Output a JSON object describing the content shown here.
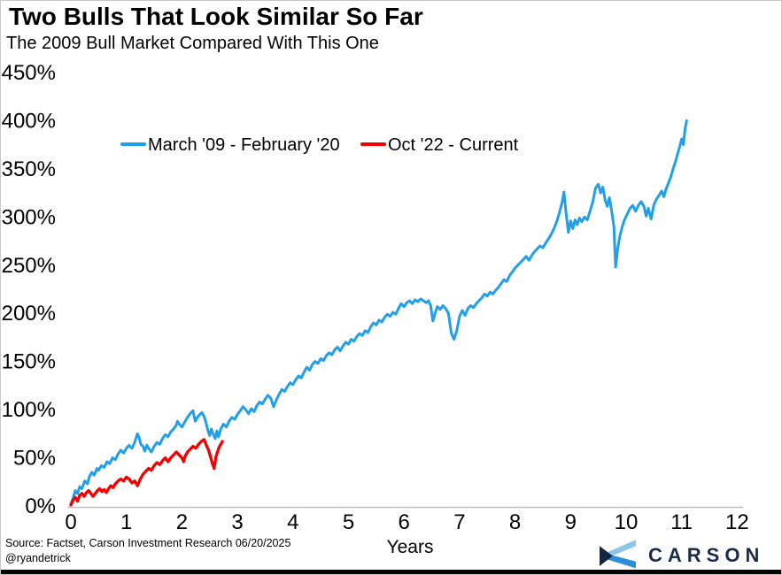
{
  "header": {
    "title": "Two Bulls That Look Similar So Far",
    "subtitle": "The 2009 Bull Market Compared With This One"
  },
  "footer": {
    "source_line1": "Source: Factset, Carson Investment Research 06/20/2025",
    "source_line2": "@ryandetrick",
    "logo_text": "CARSON"
  },
  "colors": {
    "series_blue": "#219fe8",
    "series_red": "#f30000",
    "axis_line": "#bfbfbf",
    "text": "#000000",
    "logo_navy": "#1b2b4a",
    "logo_dark_triangle": "#152540",
    "logo_light_band": "#89c6ea",
    "logo_mid_band": "#2b8fd8"
  },
  "chart_data": {
    "type": "line",
    "title": "Two Bulls That Look Similar So Far",
    "subtitle": "The 2009 Bull Market Compared With This One",
    "xlabel": "Years",
    "ylabel": "",
    "xlim": [
      0,
      12
    ],
    "ylim": [
      0,
      450
    ],
    "grid": false,
    "legend_position": "top-left-inside",
    "x_ticks": [
      0,
      1,
      2,
      3,
      4,
      5,
      6,
      7,
      8,
      9,
      10,
      11,
      12
    ],
    "y_ticks": [
      {
        "value": 0,
        "label": "0%"
      },
      {
        "value": 50,
        "label": "50%"
      },
      {
        "value": 100,
        "label": "100%"
      },
      {
        "value": 150,
        "label": "150%"
      },
      {
        "value": 200,
        "label": "200%"
      },
      {
        "value": 250,
        "label": "250%"
      },
      {
        "value": 300,
        "label": "300%"
      },
      {
        "value": 350,
        "label": "350%"
      },
      {
        "value": 400,
        "label": "400%"
      },
      {
        "value": 450,
        "label": "450%"
      }
    ],
    "series": [
      {
        "name": "March '09 - February '20",
        "color": "#219fe8",
        "points": [
          [
            0,
            2
          ],
          [
            0.04,
            8
          ],
          [
            0.08,
            16
          ],
          [
            0.12,
            13
          ],
          [
            0.16,
            20
          ],
          [
            0.2,
            18
          ],
          [
            0.25,
            26
          ],
          [
            0.3,
            23
          ],
          [
            0.33,
            30
          ],
          [
            0.38,
            35
          ],
          [
            0.42,
            32
          ],
          [
            0.47,
            39
          ],
          [
            0.5,
            37
          ],
          [
            0.55,
            42
          ],
          [
            0.6,
            40
          ],
          [
            0.65,
            46
          ],
          [
            0.7,
            44
          ],
          [
            0.75,
            50
          ],
          [
            0.8,
            48
          ],
          [
            0.85,
            54
          ],
          [
            0.9,
            58
          ],
          [
            0.95,
            55
          ],
          [
            1.0,
            60
          ],
          [
            1.05,
            63
          ],
          [
            1.1,
            60
          ],
          [
            1.15,
            66
          ],
          [
            1.2,
            75
          ],
          [
            1.23,
            71
          ],
          [
            1.26,
            64
          ],
          [
            1.3,
            62
          ],
          [
            1.33,
            57
          ],
          [
            1.37,
            63
          ],
          [
            1.4,
            60
          ],
          [
            1.45,
            56
          ],
          [
            1.5,
            62
          ],
          [
            1.55,
            66
          ],
          [
            1.6,
            64
          ],
          [
            1.65,
            70
          ],
          [
            1.7,
            74
          ],
          [
            1.75,
            72
          ],
          [
            1.8,
            77
          ],
          [
            1.85,
            80
          ],
          [
            1.9,
            84
          ],
          [
            1.92,
            88
          ],
          [
            1.95,
            85
          ],
          [
            2.0,
            82
          ],
          [
            2.05,
            87
          ],
          [
            2.1,
            92
          ],
          [
            2.15,
            96
          ],
          [
            2.2,
            99
          ],
          [
            2.24,
            88
          ],
          [
            2.28,
            92
          ],
          [
            2.32,
            95
          ],
          [
            2.36,
            97
          ],
          [
            2.4,
            93
          ],
          [
            2.44,
            85
          ],
          [
            2.47,
            78
          ],
          [
            2.5,
            73
          ],
          [
            2.53,
            80
          ],
          [
            2.56,
            75
          ],
          [
            2.6,
            70
          ],
          [
            2.63,
            78
          ],
          [
            2.66,
            72
          ],
          [
            2.7,
            80
          ],
          [
            2.75,
            85
          ],
          [
            2.8,
            82
          ],
          [
            2.85,
            88
          ],
          [
            2.9,
            92
          ],
          [
            2.95,
            90
          ],
          [
            3.0,
            95
          ],
          [
            3.05,
            99
          ],
          [
            3.1,
            103
          ],
          [
            3.15,
            100
          ],
          [
            3.2,
            96
          ],
          [
            3.25,
            101
          ],
          [
            3.3,
            98
          ],
          [
            3.35,
            104
          ],
          [
            3.4,
            108
          ],
          [
            3.45,
            106
          ],
          [
            3.5,
            111
          ],
          [
            3.55,
            115
          ],
          [
            3.6,
            112
          ],
          [
            3.65,
            103
          ],
          [
            3.7,
            110
          ],
          [
            3.75,
            116
          ],
          [
            3.8,
            121
          ],
          [
            3.85,
            119
          ],
          [
            3.9,
            124
          ],
          [
            3.95,
            128
          ],
          [
            4.0,
            126
          ],
          [
            4.05,
            131
          ],
          [
            4.1,
            135
          ],
          [
            4.15,
            133
          ],
          [
            4.2,
            139
          ],
          [
            4.25,
            144
          ],
          [
            4.3,
            141
          ],
          [
            4.35,
            147
          ],
          [
            4.4,
            150
          ],
          [
            4.45,
            148
          ],
          [
            4.5,
            153
          ],
          [
            4.55,
            151
          ],
          [
            4.6,
            156
          ],
          [
            4.65,
            159
          ],
          [
            4.7,
            157
          ],
          [
            4.75,
            162
          ],
          [
            4.8,
            165
          ],
          [
            4.85,
            161
          ],
          [
            4.9,
            166
          ],
          [
            4.95,
            170
          ],
          [
            5.0,
            168
          ],
          [
            5.05,
            173
          ],
          [
            5.1,
            171
          ],
          [
            5.15,
            176
          ],
          [
            5.2,
            179
          ],
          [
            5.25,
            177
          ],
          [
            5.3,
            182
          ],
          [
            5.35,
            180
          ],
          [
            5.4,
            186
          ],
          [
            5.45,
            190
          ],
          [
            5.5,
            188
          ],
          [
            5.55,
            193
          ],
          [
            5.6,
            191
          ],
          [
            5.65,
            196
          ],
          [
            5.7,
            199
          ],
          [
            5.75,
            197
          ],
          [
            5.8,
            201
          ],
          [
            5.85,
            199
          ],
          [
            5.9,
            205
          ],
          [
            5.95,
            210
          ],
          [
            6.0,
            207
          ],
          [
            6.05,
            211
          ],
          [
            6.1,
            213
          ],
          [
            6.15,
            210
          ],
          [
            6.2,
            214
          ],
          [
            6.25,
            212
          ],
          [
            6.3,
            215
          ],
          [
            6.35,
            213
          ],
          [
            6.4,
            211
          ],
          [
            6.44,
            213
          ],
          [
            6.48,
            208
          ],
          [
            6.52,
            192
          ],
          [
            6.56,
            200
          ],
          [
            6.6,
            207
          ],
          [
            6.65,
            204
          ],
          [
            6.7,
            208
          ],
          [
            6.75,
            205
          ],
          [
            6.8,
            200
          ],
          [
            6.85,
            180
          ],
          [
            6.9,
            173
          ],
          [
            6.95,
            182
          ],
          [
            7.0,
            197
          ],
          [
            7.05,
            203
          ],
          [
            7.1,
            198
          ],
          [
            7.15,
            205
          ],
          [
            7.2,
            208
          ],
          [
            7.25,
            206
          ],
          [
            7.3,
            210
          ],
          [
            7.35,
            213
          ],
          [
            7.4,
            216
          ],
          [
            7.45,
            220
          ],
          [
            7.5,
            218
          ],
          [
            7.55,
            222
          ],
          [
            7.6,
            220
          ],
          [
            7.65,
            224
          ],
          [
            7.7,
            227
          ],
          [
            7.75,
            231
          ],
          [
            7.8,
            235
          ],
          [
            7.85,
            233
          ],
          [
            7.9,
            239
          ],
          [
            7.95,
            243
          ],
          [
            8.0,
            247
          ],
          [
            8.05,
            250
          ],
          [
            8.1,
            253
          ],
          [
            8.15,
            256
          ],
          [
            8.2,
            259
          ],
          [
            8.25,
            255
          ],
          [
            8.3,
            260
          ],
          [
            8.35,
            264
          ],
          [
            8.4,
            267
          ],
          [
            8.45,
            270
          ],
          [
            8.5,
            268
          ],
          [
            8.55,
            273
          ],
          [
            8.6,
            277
          ],
          [
            8.65,
            282
          ],
          [
            8.7,
            288
          ],
          [
            8.75,
            295
          ],
          [
            8.8,
            305
          ],
          [
            8.85,
            316
          ],
          [
            8.88,
            326
          ],
          [
            8.92,
            303
          ],
          [
            8.96,
            284
          ],
          [
            9.0,
            296
          ],
          [
            9.04,
            288
          ],
          [
            9.08,
            297
          ],
          [
            9.12,
            292
          ],
          [
            9.16,
            299
          ],
          [
            9.2,
            295
          ],
          [
            9.25,
            300
          ],
          [
            9.3,
            297
          ],
          [
            9.35,
            306
          ],
          [
            9.4,
            316
          ],
          [
            9.45,
            330
          ],
          [
            9.5,
            334
          ],
          [
            9.54,
            325
          ],
          [
            9.58,
            331
          ],
          [
            9.62,
            318
          ],
          [
            9.66,
            311
          ],
          [
            9.7,
            320
          ],
          [
            9.74,
            306
          ],
          [
            9.78,
            290
          ],
          [
            9.81,
            248
          ],
          [
            9.85,
            268
          ],
          [
            9.89,
            281
          ],
          [
            9.93,
            290
          ],
          [
            9.97,
            297
          ],
          [
            10.02,
            303
          ],
          [
            10.07,
            309
          ],
          [
            10.12,
            312
          ],
          [
            10.17,
            306
          ],
          [
            10.22,
            312
          ],
          [
            10.27,
            316
          ],
          [
            10.32,
            311
          ],
          [
            10.36,
            301
          ],
          [
            10.4,
            309
          ],
          [
            10.45,
            298
          ],
          [
            10.5,
            313
          ],
          [
            10.55,
            319
          ],
          [
            10.6,
            323
          ],
          [
            10.64,
            327
          ],
          [
            10.68,
            321
          ],
          [
            10.72,
            329
          ],
          [
            10.76,
            335
          ],
          [
            10.8,
            341
          ],
          [
            10.84,
            349
          ],
          [
            10.88,
            356
          ],
          [
            10.92,
            364
          ],
          [
            10.96,
            372
          ],
          [
            11.0,
            381
          ],
          [
            11.03,
            375
          ],
          [
            11.06,
            391
          ],
          [
            11.09,
            400
          ]
        ]
      },
      {
        "name": "Oct '22 - Current",
        "color": "#f30000",
        "points": [
          [
            0,
            1
          ],
          [
            0.04,
            6
          ],
          [
            0.08,
            9
          ],
          [
            0.12,
            5
          ],
          [
            0.16,
            11
          ],
          [
            0.2,
            13
          ],
          [
            0.24,
            10
          ],
          [
            0.28,
            14
          ],
          [
            0.32,
            16
          ],
          [
            0.36,
            13
          ],
          [
            0.4,
            10
          ],
          [
            0.44,
            13
          ],
          [
            0.48,
            16
          ],
          [
            0.52,
            18
          ],
          [
            0.56,
            15
          ],
          [
            0.6,
            17
          ],
          [
            0.64,
            14
          ],
          [
            0.68,
            18
          ],
          [
            0.72,
            21
          ],
          [
            0.76,
            19
          ],
          [
            0.8,
            23
          ],
          [
            0.85,
            26
          ],
          [
            0.9,
            28
          ],
          [
            0.95,
            26
          ],
          [
            1.0,
            30
          ],
          [
            1.05,
            28
          ],
          [
            1.1,
            24
          ],
          [
            1.15,
            26
          ],
          [
            1.2,
            21
          ],
          [
            1.25,
            28
          ],
          [
            1.3,
            33
          ],
          [
            1.35,
            36
          ],
          [
            1.4,
            39
          ],
          [
            1.45,
            37
          ],
          [
            1.5,
            42
          ],
          [
            1.55,
            45
          ],
          [
            1.6,
            43
          ],
          [
            1.65,
            47
          ],
          [
            1.7,
            50
          ],
          [
            1.75,
            46
          ],
          [
            1.8,
            50
          ],
          [
            1.85,
            53
          ],
          [
            1.9,
            56
          ],
          [
            1.95,
            53
          ],
          [
            2.0,
            50
          ],
          [
            2.03,
            46
          ],
          [
            2.06,
            52
          ],
          [
            2.1,
            56
          ],
          [
            2.15,
            59
          ],
          [
            2.2,
            62
          ],
          [
            2.25,
            60
          ],
          [
            2.3,
            64
          ],
          [
            2.35,
            67
          ],
          [
            2.4,
            69
          ],
          [
            2.44,
            63
          ],
          [
            2.48,
            58
          ],
          [
            2.52,
            50
          ],
          [
            2.55,
            44
          ],
          [
            2.58,
            39
          ],
          [
            2.61,
            50
          ],
          [
            2.64,
            56
          ],
          [
            2.67,
            61
          ],
          [
            2.7,
            64
          ],
          [
            2.73,
            67
          ]
        ]
      }
    ]
  }
}
